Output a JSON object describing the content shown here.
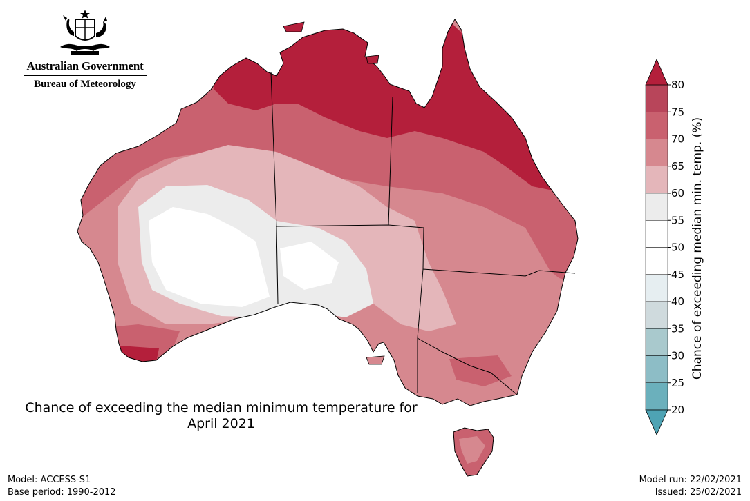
{
  "header": {
    "government": "Australian Government",
    "bureau": "Bureau of Meteorology"
  },
  "map": {
    "title_line1": "Chance of exceeding the median minimum temperature for",
    "title_line2": "April 2021",
    "region": "Australia",
    "outline_color": "#000000"
  },
  "colorbar": {
    "label": "Chance of exceeding median min. temp. (%)",
    "ticks": [
      "80",
      "75",
      "70",
      "65",
      "60",
      "55",
      "50",
      "45",
      "40",
      "35",
      "30",
      "25",
      "20"
    ],
    "bins": [
      {
        "range": "75-80",
        "color": "#b8455a"
      },
      {
        "range": "70-75",
        "color": "#c9616f"
      },
      {
        "range": "65-70",
        "color": "#d6888f"
      },
      {
        "range": "60-65",
        "color": "#e4b6ba"
      },
      {
        "range": "55-60",
        "color": "#ececec"
      },
      {
        "range": "50-55",
        "color": "#ffffff"
      },
      {
        "range": "45-50",
        "color": "#ffffff"
      },
      {
        "range": "40-45",
        "color": "#e6eef1"
      },
      {
        "range": "35-40",
        "color": "#cfdadd"
      },
      {
        "range": "30-35",
        "color": "#a9c9cd"
      },
      {
        "range": "25-30",
        "color": "#8dbdc6"
      },
      {
        "range": "20-25",
        "color": "#6bb0bc"
      }
    ],
    "top_arrow_color": "#b41f3b",
    "bottom_arrow_color": "#4ea3b4"
  },
  "footer": {
    "model": "Model: ACCESS-S1",
    "base_period": "Base period: 1990-2012",
    "model_run": "Model run: 22/02/2021",
    "issued": "Issued: 25/02/2021"
  }
}
